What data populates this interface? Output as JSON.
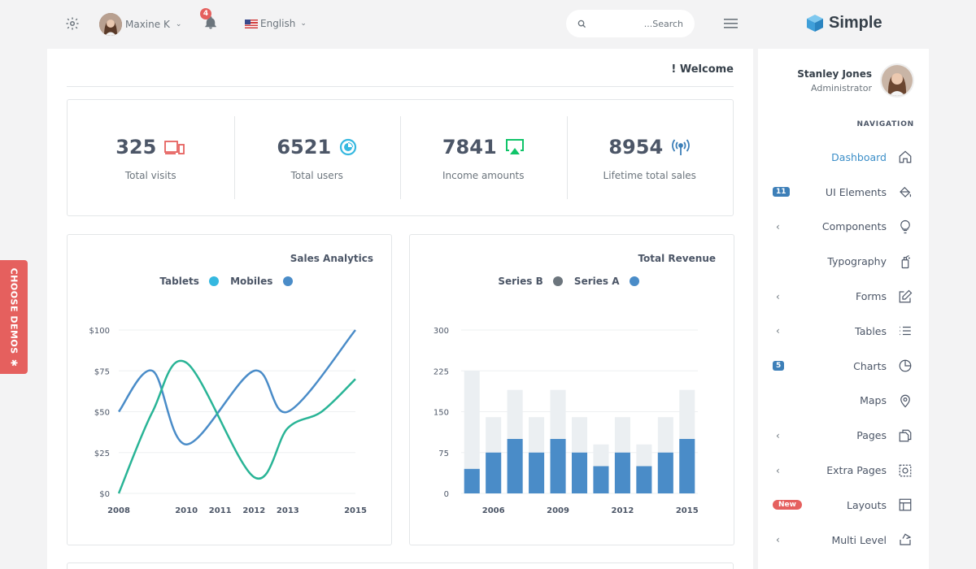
{
  "topbar": {
    "user_name": "Maxine K",
    "notifications_count": "4",
    "language": "English",
    "search_placeholder": "...Search"
  },
  "brand": {
    "title": "Simple"
  },
  "main": {
    "welcome": "! Welcome",
    "stats": [
      {
        "value": "325",
        "label": "Total visits",
        "icon": "devices-icon",
        "color": "#e5605e"
      },
      {
        "value": "6521",
        "label": "Total users",
        "icon": "pie-icon",
        "color": "#35b8e0"
      },
      {
        "value": "7841",
        "label": "Income amounts",
        "icon": "airplay-icon",
        "color": "#10c469"
      },
      {
        "value": "8954",
        "label": "Lifetime total sales",
        "icon": "broadcast-icon",
        "color": "#3d7fb8"
      }
    ]
  },
  "sidebar": {
    "profile_name": "Stanley Jones",
    "profile_role": "Administrator",
    "nav_heading": "NAVIGATION",
    "items": [
      {
        "label": "Dashboard",
        "icon": "home-icon",
        "active": true
      },
      {
        "label": "UI Elements",
        "icon": "paint-bucket-icon",
        "badge": "11"
      },
      {
        "label": "Components",
        "icon": "lightbulb-icon",
        "chevron": true
      },
      {
        "label": "Typography",
        "icon": "spray-icon"
      },
      {
        "label": "Forms",
        "icon": "edit-icon",
        "chevron": true
      },
      {
        "label": "Tables",
        "icon": "list-icon",
        "chevron": true
      },
      {
        "label": "Charts",
        "icon": "pie-chart-icon",
        "badge": "5"
      },
      {
        "label": "Maps",
        "icon": "map-pin-icon"
      },
      {
        "label": "Pages",
        "icon": "copy-icon",
        "chevron": true
      },
      {
        "label": "Extra Pages",
        "icon": "aperture-icon",
        "chevron": true
      },
      {
        "label": "Layouts",
        "icon": "layout-icon",
        "badge_new": "New"
      },
      {
        "label": "Multi Level",
        "icon": "share-icon",
        "chevron": true
      }
    ]
  },
  "demos_label": "CHOOSE DEMOS",
  "chart_data": [
    {
      "type": "line",
      "title": "Sales Analytics",
      "x_ticks": [
        "2008",
        "2010",
        "2011",
        "2012",
        "2013",
        "2015"
      ],
      "x_range": [
        2008,
        2015
      ],
      "y_ticks": [
        "$100",
        "$75",
        "$50",
        "$25",
        "$0"
      ],
      "ylim": [
        0,
        100
      ],
      "series": [
        {
          "name": "Tablets",
          "color": "#35b8e0",
          "points": []
        },
        {
          "name": "Mobiles",
          "color": "#4a8cc8",
          "points": [
            [
              2008,
              50
            ],
            [
              2009,
              75
            ],
            [
              2010,
              30
            ],
            [
              2012,
              75
            ],
            [
              2013,
              50
            ],
            [
              2015,
              100
            ]
          ]
        }
      ],
      "extra_series": [
        {
          "name": "",
          "color": "#29b496",
          "points": [
            [
              2008,
              0
            ],
            [
              2009,
              50
            ],
            [
              2010,
              80
            ],
            [
              2012,
              10
            ],
            [
              2013,
              40
            ],
            [
              2014,
              50
            ],
            [
              2015,
              70
            ]
          ]
        }
      ],
      "legend_position": "top-center"
    },
    {
      "type": "bar",
      "title": "Total Revenue",
      "categories": [
        "2005",
        "2006",
        "2007",
        "2008",
        "2009",
        "2010",
        "2011",
        "2012",
        "2013",
        "2014",
        "2015"
      ],
      "x_tick_labels": [
        "",
        "2006",
        "",
        "",
        "2009",
        "",
        "",
        "2012",
        "",
        "",
        "2015"
      ],
      "y_ticks": [
        "300",
        "225",
        "150",
        "75",
        "0"
      ],
      "ylim": [
        0,
        300
      ],
      "series": [
        {
          "name": "Series A",
          "color": "#4a8cc8",
          "values": [
            45,
            75,
            100,
            75,
            100,
            75,
            50,
            75,
            50,
            75,
            100
          ]
        },
        {
          "name": "Series B",
          "color": "#ebeff2",
          "values": [
            225,
            140,
            190,
            140,
            190,
            140,
            90,
            140,
            90,
            140,
            190
          ]
        }
      ],
      "legend_labels": [
        "Series B",
        "Series A"
      ],
      "legend_colors": [
        "#6c757d",
        "#4a8cc8"
      ],
      "legend_position": "top-center"
    }
  ]
}
